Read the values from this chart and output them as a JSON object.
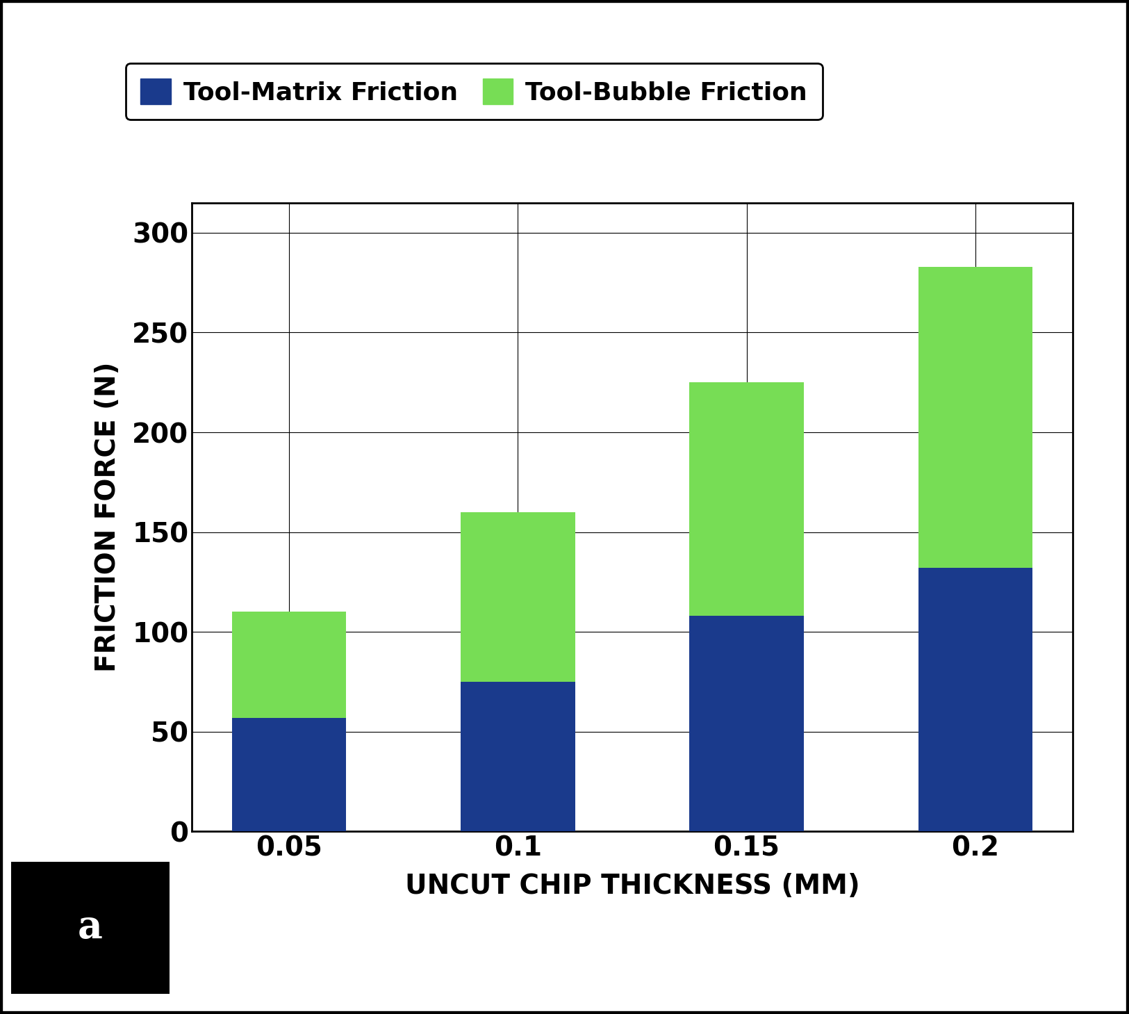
{
  "categories": [
    "0.05",
    "0.1",
    "0.15",
    "0.2"
  ],
  "matrix_friction": [
    57,
    75,
    108,
    132
  ],
  "bubble_friction": [
    53,
    85,
    117,
    151
  ],
  "matrix_color": "#1a3a8c",
  "bubble_color": "#77dd55",
  "bar_width": 0.5,
  "ylabel": "FRICTION FORCE (N)",
  "xlabel": "UNCUT CHIP THICKNESS (MM)",
  "ylim": [
    0,
    315
  ],
  "yticks": [
    0,
    50,
    100,
    150,
    200,
    250,
    300
  ],
  "legend_label_matrix": "Tool-Matrix Friction",
  "legend_label_bubble": "Tool-Bubble Friction",
  "annotation_label": "a",
  "background_color": "#ffffff",
  "outer_background": "#ffffff",
  "ylabel_fontsize": 28,
  "xlabel_fontsize": 28,
  "tick_fontsize": 28,
  "legend_fontsize": 26,
  "annotation_fontsize": 40,
  "label_fontweight": "bold",
  "tick_fontweight": "bold"
}
